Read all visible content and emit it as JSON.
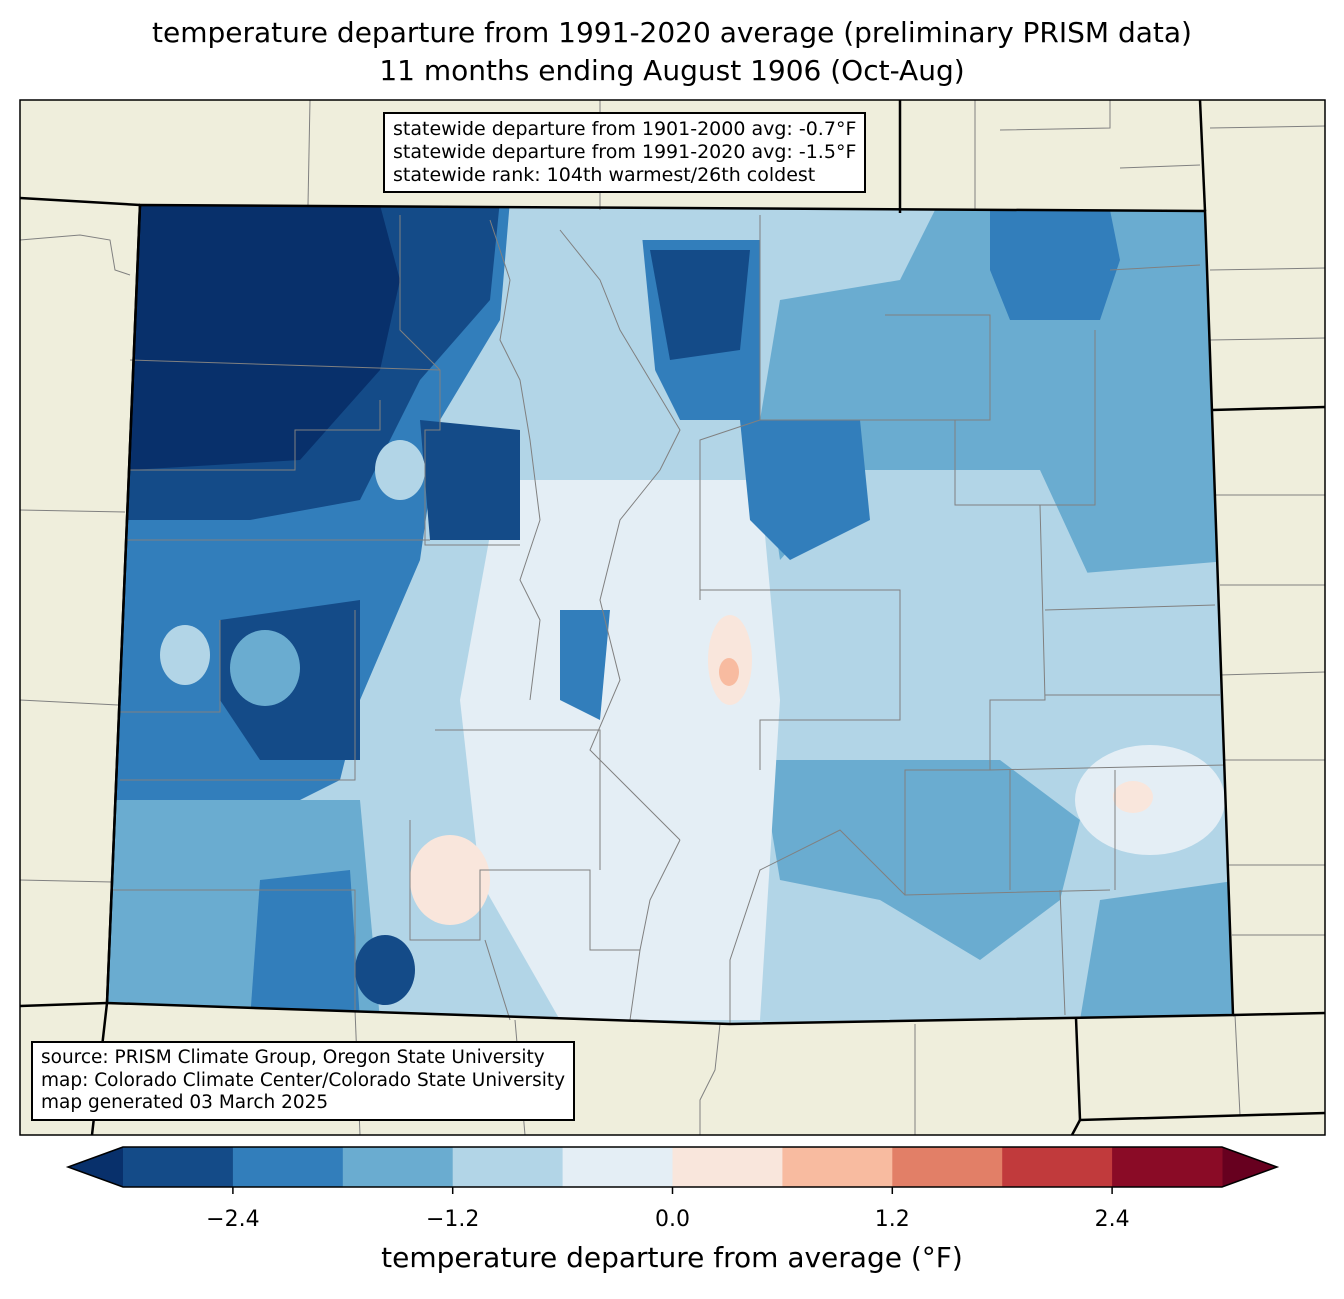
{
  "title": {
    "line1": "temperature departure from 1991-2020 average (preliminary PRISM data)",
    "line2": "11 months ending August 1906 (Oct-Aug)"
  },
  "stats": {
    "line1": "statewide departure from 1901-2000 avg: -0.7°F",
    "line2": "statewide departure from 1991-2020 avg: -1.5°F",
    "line3": "statewide rank: 104th warmest/26th coldest"
  },
  "source": {
    "line1": "source: PRISM Climate Group, Oregon State University",
    "line2": "map: Colorado Climate Center/Colorado State University",
    "line3": "map generated 03 March 2025"
  },
  "colorbar": {
    "label": "temperature departure from average (°F)",
    "range": [
      -3.0,
      3.0
    ],
    "step": 0.6,
    "ticks": [
      "−2.4",
      "−1.2",
      "0.0",
      "1.2",
      "2.4"
    ],
    "tick_values": [
      -2.4,
      -1.2,
      0.0,
      1.2,
      2.4
    ],
    "under_color": "#08306b",
    "over_color": "#67001f",
    "colors": [
      "#144b88",
      "#327ebb",
      "#6aacd0",
      "#b2d5e7",
      "#e4eef5",
      "#f9e6dc",
      "#f8bba0",
      "#e27f67",
      "#c13a3c",
      "#8a0b26"
    ]
  },
  "map_colors": {
    "land": "#efeedc",
    "state_border": "#000000",
    "county_border": "#808080"
  }
}
